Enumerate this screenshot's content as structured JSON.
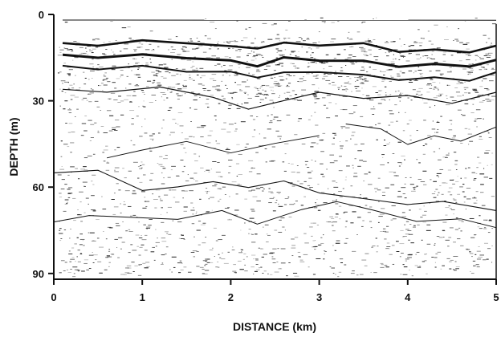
{
  "chart_data": {
    "type": "seismic-profile",
    "xlabel": "DISTANCE (km)",
    "ylabel": "DEPTH (m)",
    "xlim": [
      0,
      5
    ],
    "ylim": [
      0,
      92
    ],
    "y_inverted": true,
    "grid": false,
    "x_ticks": [
      0,
      1,
      2,
      3,
      4,
      5
    ],
    "x_tick_labels": [
      "0",
      "1",
      "2",
      "3",
      "4",
      "5"
    ],
    "y_ticks": [
      0,
      30,
      60,
      90
    ],
    "y_tick_labels": [
      "0",
      "30",
      "60",
      "90"
    ],
    "colors": {
      "ink": "#111111",
      "background": "#ffffff"
    },
    "reflectors": [
      {
        "name": "surface",
        "weight": 1.0,
        "points": [
          [
            0.1,
            2
          ],
          [
            5,
            2
          ]
        ]
      },
      {
        "name": "top-band-1",
        "weight": 2.6,
        "points": [
          [
            0.1,
            10
          ],
          [
            0.5,
            11
          ],
          [
            1.0,
            9
          ],
          [
            1.5,
            10
          ],
          [
            2.0,
            11
          ],
          [
            2.3,
            12
          ],
          [
            2.6,
            10
          ],
          [
            3.0,
            11
          ],
          [
            3.5,
            10
          ],
          [
            3.9,
            13
          ],
          [
            4.3,
            12
          ],
          [
            4.7,
            13
          ],
          [
            5.0,
            11
          ]
        ]
      },
      {
        "name": "top-band-2",
        "weight": 3.0,
        "points": [
          [
            0.1,
            14
          ],
          [
            0.5,
            15
          ],
          [
            1.0,
            14
          ],
          [
            1.5,
            15
          ],
          [
            2.0,
            16
          ],
          [
            2.3,
            18
          ],
          [
            2.6,
            15
          ],
          [
            3.0,
            16
          ],
          [
            3.5,
            16
          ],
          [
            3.9,
            18
          ],
          [
            4.3,
            17
          ],
          [
            4.7,
            18
          ],
          [
            5.0,
            16
          ]
        ]
      },
      {
        "name": "top-band-3",
        "weight": 2.0,
        "points": [
          [
            0.1,
            18
          ],
          [
            0.5,
            19
          ],
          [
            1.0,
            18
          ],
          [
            1.5,
            20
          ],
          [
            2.0,
            20
          ],
          [
            2.3,
            22
          ],
          [
            2.6,
            20
          ],
          [
            3.0,
            20
          ],
          [
            3.5,
            21
          ],
          [
            3.9,
            23
          ],
          [
            4.3,
            22
          ],
          [
            4.7,
            23
          ],
          [
            5.0,
            20
          ]
        ]
      },
      {
        "name": "mid-1",
        "weight": 1.2,
        "points": [
          [
            0.1,
            26
          ],
          [
            0.6,
            27
          ],
          [
            1.2,
            25
          ],
          [
            1.8,
            29
          ],
          [
            2.2,
            33
          ],
          [
            2.6,
            30
          ],
          [
            3.0,
            27
          ],
          [
            3.5,
            29
          ],
          [
            4.0,
            28
          ],
          [
            4.5,
            31
          ],
          [
            5.0,
            27
          ]
        ]
      },
      {
        "name": "mid-2",
        "weight": 1.0,
        "points": [
          [
            3.3,
            38
          ],
          [
            3.7,
            40
          ],
          [
            4.0,
            45
          ],
          [
            4.3,
            42
          ],
          [
            4.6,
            44
          ],
          [
            5.0,
            39
          ]
        ]
      },
      {
        "name": "mid-3",
        "weight": 0.9,
        "points": [
          [
            0.6,
            50
          ],
          [
            1.0,
            47
          ],
          [
            1.5,
            44
          ],
          [
            2.0,
            48
          ],
          [
            2.5,
            45
          ],
          [
            3.0,
            42
          ]
        ]
      },
      {
        "name": "lower-1",
        "weight": 1.1,
        "points": [
          [
            0.0,
            55
          ],
          [
            0.5,
            54
          ],
          [
            1.0,
            61
          ],
          [
            1.4,
            60
          ],
          [
            1.8,
            58
          ],
          [
            2.2,
            60
          ],
          [
            2.6,
            58
          ],
          [
            3.0,
            62
          ],
          [
            3.5,
            64
          ],
          [
            4.0,
            66
          ],
          [
            4.4,
            65
          ],
          [
            5.0,
            68
          ]
        ]
      },
      {
        "name": "lower-2",
        "weight": 1.0,
        "points": [
          [
            0.0,
            72
          ],
          [
            0.4,
            70
          ],
          [
            1.4,
            71
          ],
          [
            1.9,
            68
          ],
          [
            2.3,
            73
          ],
          [
            2.8,
            68
          ],
          [
            3.2,
            65
          ],
          [
            3.6,
            68
          ],
          [
            4.1,
            72
          ],
          [
            4.6,
            71
          ],
          [
            5.0,
            74
          ]
        ]
      }
    ]
  }
}
